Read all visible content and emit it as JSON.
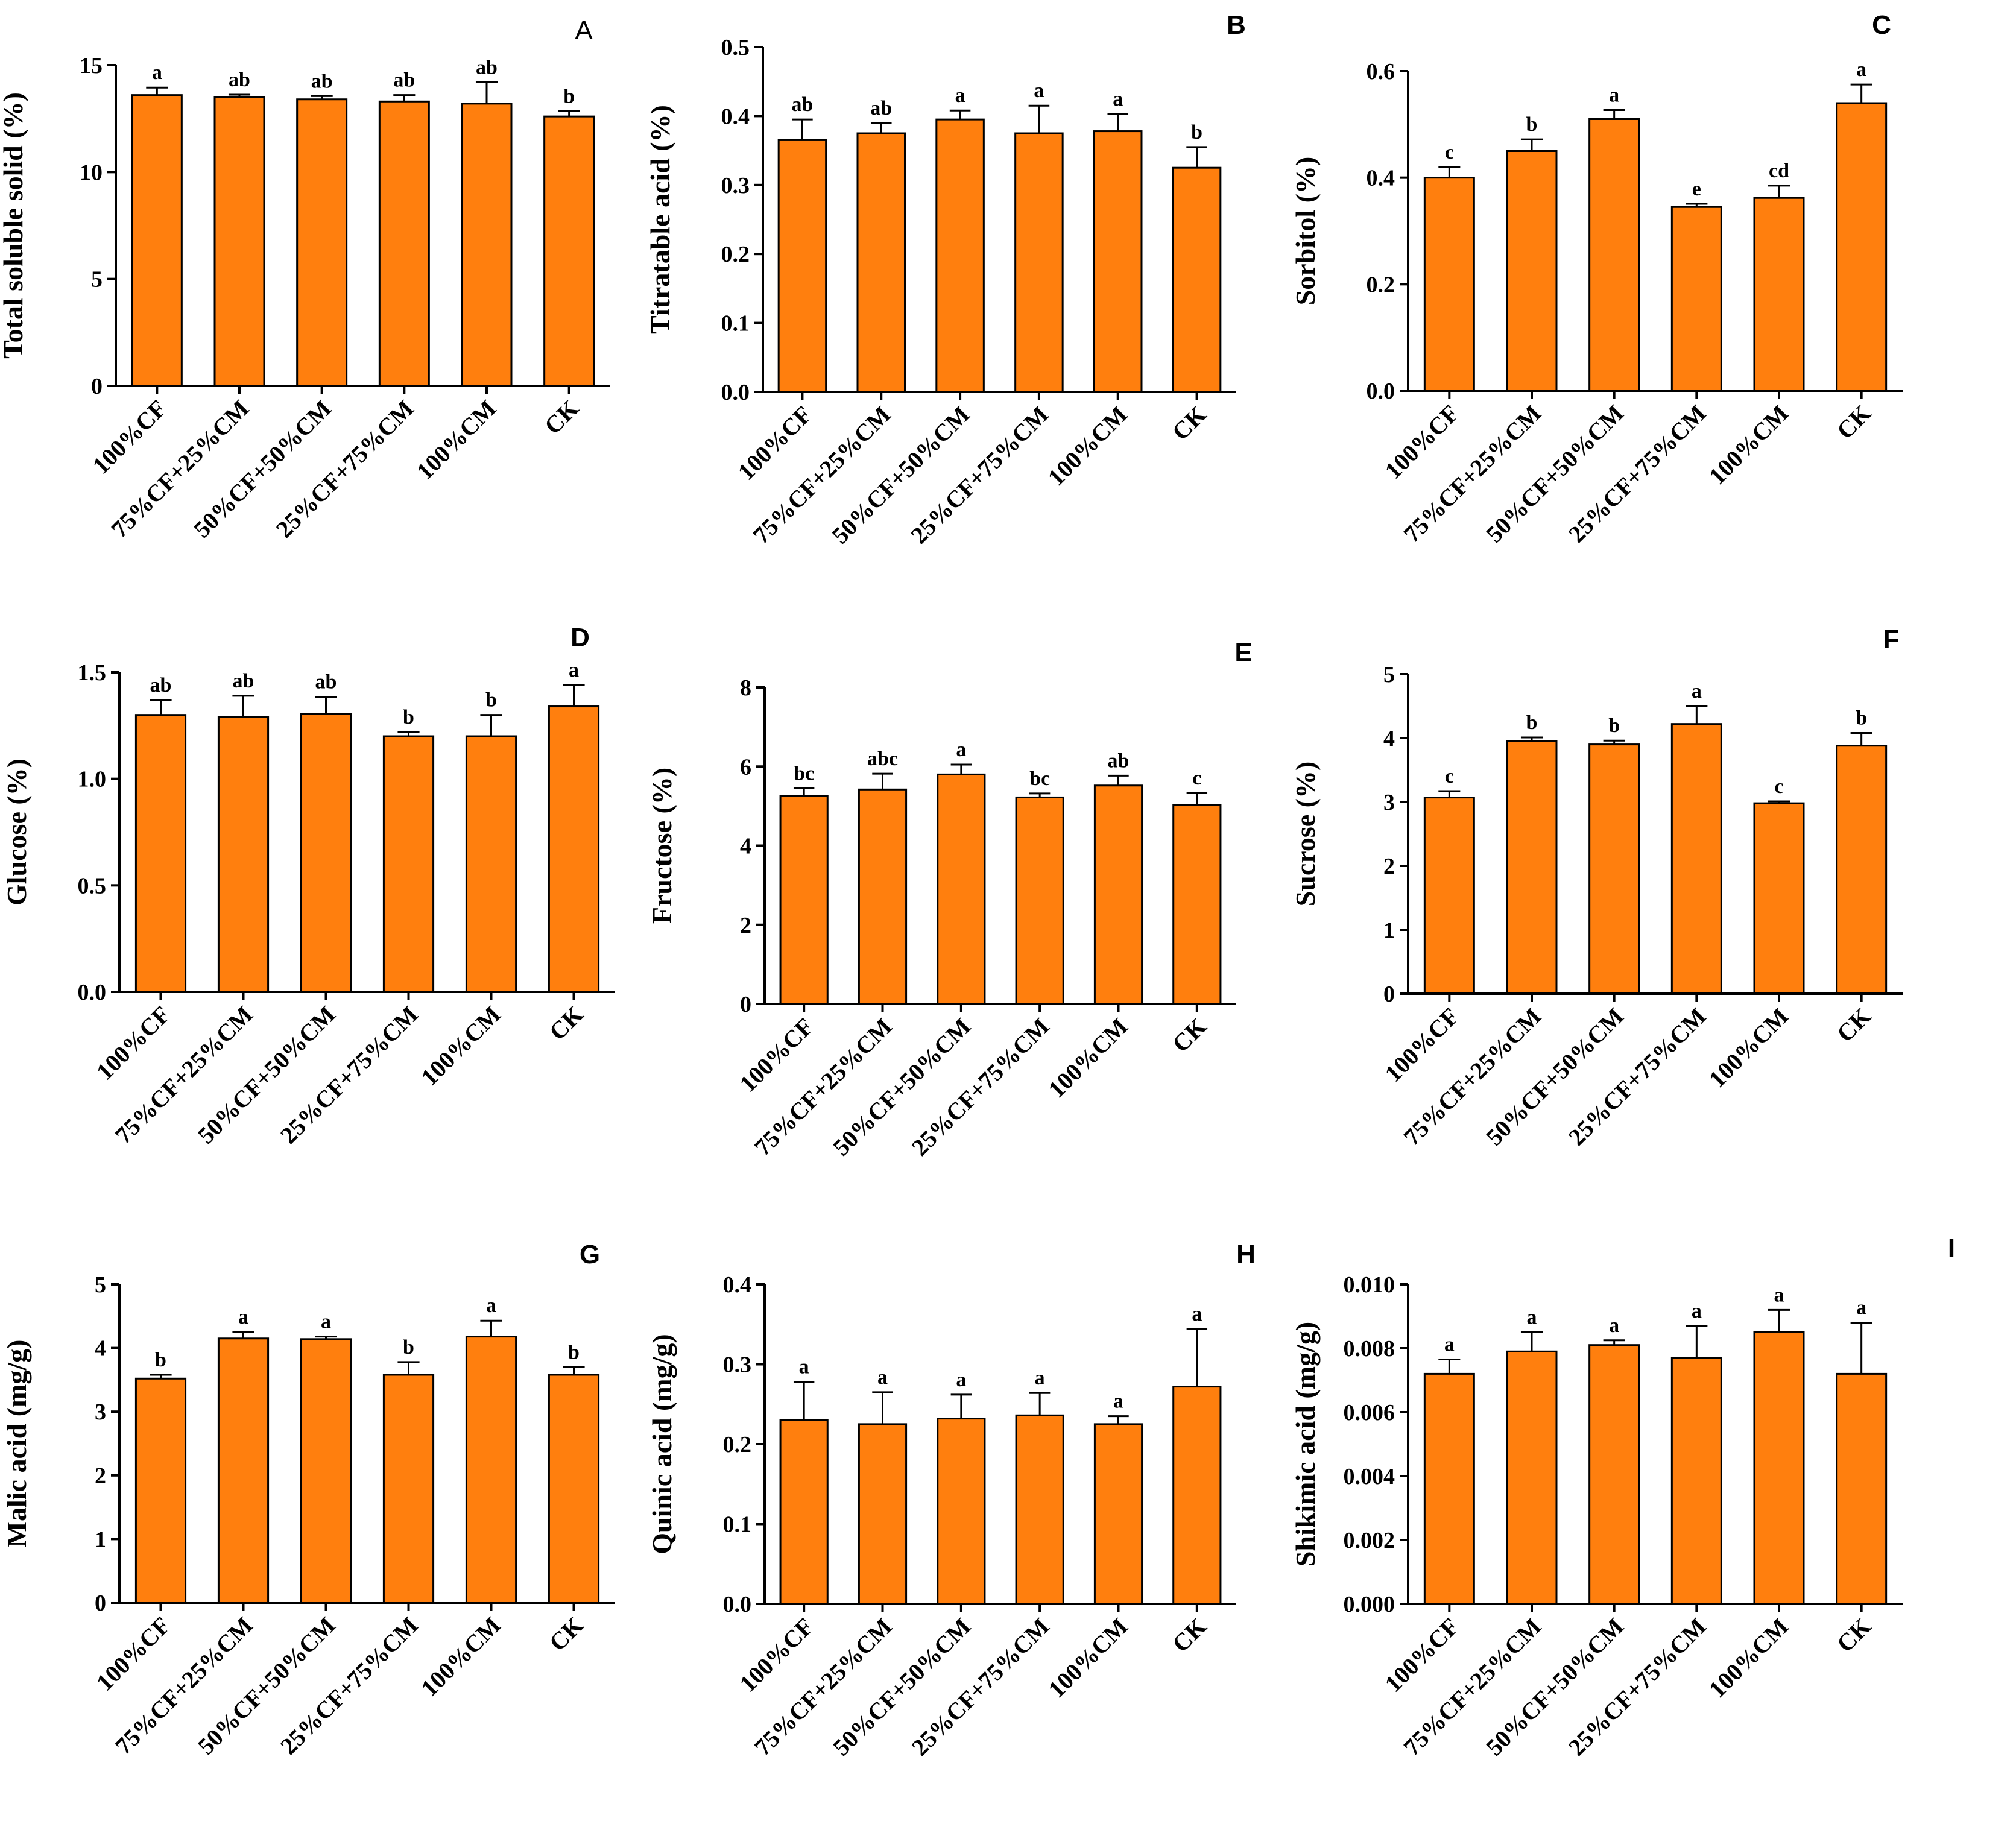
{
  "bar_color": "#FF7F0E",
  "chart_data": [
    {
      "type": "bar",
      "panel": "A",
      "ylabel": "Total soluble solid (%)",
      "categories": [
        "100%CF",
        "75%CF+25%CM",
        "50%CF+50%CM",
        "25%CF+75%CM",
        "100%CM",
        "CK"
      ],
      "ylim": [
        0,
        15
      ],
      "yticks": [
        "0",
        "5",
        "10",
        "15"
      ],
      "values": [
        13.6,
        13.5,
        13.4,
        13.3,
        13.2,
        12.6
      ],
      "errors": [
        0.35,
        0.12,
        0.15,
        0.3,
        1.0,
        0.25
      ],
      "letters": [
        "a",
        "ab",
        "ab",
        "ab",
        "ab",
        "b"
      ]
    },
    {
      "type": "bar",
      "panel": "B",
      "ylabel": "Titratable acid (%)",
      "categories": [
        "100%CF",
        "75%CF+25%CM",
        "50%CF+50%CM",
        "25%CF+75%CM",
        "100%CM",
        "CK"
      ],
      "ylim": [
        0,
        0.5
      ],
      "yticks": [
        "0.0",
        "0.1",
        "0.2",
        "0.3",
        "0.4",
        "0.5"
      ],
      "values": [
        0.365,
        0.375,
        0.395,
        0.375,
        0.378,
        0.325
      ],
      "errors": [
        0.03,
        0.015,
        0.013,
        0.04,
        0.025,
        0.03
      ],
      "letters": [
        "ab",
        "ab",
        "a",
        "a",
        "a",
        "b"
      ]
    },
    {
      "type": "bar",
      "panel": "C",
      "ylabel": "Sorbitol (%)",
      "categories": [
        "100%CF",
        "75%CF+25%CM",
        "50%CF+50%CM",
        "25%CF+75%CM",
        "100%CM",
        "CK"
      ],
      "ylim": [
        0,
        0.6
      ],
      "yticks": [
        "0.0",
        "0.2",
        "0.4",
        "0.6"
      ],
      "values": [
        0.4,
        0.45,
        0.51,
        0.345,
        0.362,
        0.54
      ],
      "errors": [
        0.02,
        0.022,
        0.017,
        0.006,
        0.023,
        0.035
      ],
      "letters": [
        "c",
        "b",
        "a",
        "e",
        "cd",
        "a"
      ]
    },
    {
      "type": "bar",
      "panel": "D",
      "ylabel": "Glucose (%)",
      "categories": [
        "100%CF",
        "75%CF+25%CM",
        "50%CF+50%CM",
        "25%CF+75%CM",
        "100%CM",
        "CK"
      ],
      "ylim": [
        0,
        1.5
      ],
      "yticks": [
        "0.0",
        "0.5",
        "1.0",
        "1.5"
      ],
      "values": [
        1.3,
        1.29,
        1.305,
        1.2,
        1.2,
        1.34
      ],
      "errors": [
        0.07,
        0.1,
        0.08,
        0.02,
        0.1,
        0.1
      ],
      "letters": [
        "ab",
        "ab",
        "ab",
        "b",
        "b",
        "a"
      ]
    },
    {
      "type": "bar",
      "panel": "E",
      "ylabel": "Fructose (%)",
      "categories": [
        "100%CF",
        "75%CF+25%CM",
        "50%CF+50%CM",
        "25%CF+75%CM",
        "100%CM",
        "CK"
      ],
      "ylim": [
        0,
        8
      ],
      "yticks": [
        "0",
        "2",
        "4",
        "6",
        "8"
      ],
      "values": [
        5.25,
        5.42,
        5.8,
        5.22,
        5.52,
        5.03
      ],
      "errors": [
        0.2,
        0.4,
        0.25,
        0.1,
        0.25,
        0.3
      ],
      "letters": [
        "bc",
        "abc",
        "a",
        "bc",
        "ab",
        "c"
      ]
    },
    {
      "type": "bar",
      "panel": "F",
      "ylabel": "Sucrose  (%)",
      "categories": [
        "100%CF",
        "75%CF+25%CM",
        "50%CF+50%CM",
        "25%CF+75%CM",
        "100%CM",
        "CK"
      ],
      "ylim": [
        0,
        5
      ],
      "yticks": [
        "0",
        "1",
        "2",
        "3",
        "4",
        "5"
      ],
      "values": [
        3.07,
        3.95,
        3.9,
        4.22,
        2.98,
        3.88
      ],
      "errors": [
        0.1,
        0.06,
        0.06,
        0.28,
        0.03,
        0.2
      ],
      "letters": [
        "c",
        "b",
        "b",
        "a",
        "c",
        "b"
      ]
    },
    {
      "type": "bar",
      "panel": "G",
      "ylabel": "Malic acid (mg/g)",
      "categories": [
        "100%CF",
        "75%CF+25%CM",
        "50%CF+50%CM",
        "25%CF+75%CM",
        "100%CM",
        "CK"
      ],
      "ylim": [
        0,
        5
      ],
      "yticks": [
        "0",
        "1",
        "2",
        "3",
        "4",
        "5"
      ],
      "values": [
        3.52,
        4.15,
        4.14,
        3.58,
        4.18,
        3.58
      ],
      "errors": [
        0.06,
        0.1,
        0.04,
        0.2,
        0.25,
        0.12
      ],
      "letters": [
        "b",
        "a",
        "a",
        "b",
        "a",
        "b"
      ]
    },
    {
      "type": "bar",
      "panel": "H",
      "ylabel": "Quinic acid (mg/g)",
      "categories": [
        "100%CF",
        "75%CF+25%CM",
        "50%CF+50%CM",
        "25%CF+75%CM",
        "100%CM",
        "CK"
      ],
      "ylim": [
        0,
        0.4
      ],
      "yticks": [
        "0.0",
        "0.1",
        "0.2",
        "0.3",
        "0.4"
      ],
      "values": [
        0.23,
        0.225,
        0.232,
        0.236,
        0.225,
        0.272
      ],
      "errors": [
        0.048,
        0.04,
        0.03,
        0.028,
        0.01,
        0.072
      ],
      "letters": [
        "a",
        "a",
        "a",
        "a",
        "a",
        "a"
      ]
    },
    {
      "type": "bar",
      "panel": "I",
      "ylabel": "Shikimic acid (mg/g)",
      "categories": [
        "100%CF",
        "75%CF+25%CM",
        "50%CF+50%CM",
        "25%CF+75%CM",
        "100%CM",
        "CK"
      ],
      "ylim": [
        0,
        0.01
      ],
      "yticks": [
        "0.000",
        "0.002",
        "0.004",
        "0.006",
        "0.008",
        "0.010"
      ],
      "values": [
        0.0072,
        0.0079,
        0.0081,
        0.0077,
        0.0085,
        0.0072
      ],
      "errors": [
        0.00045,
        0.0006,
        0.00015,
        0.001,
        0.0007,
        0.0016
      ],
      "letters": [
        "a",
        "a",
        "a",
        "a",
        "a",
        "a"
      ]
    }
  ]
}
